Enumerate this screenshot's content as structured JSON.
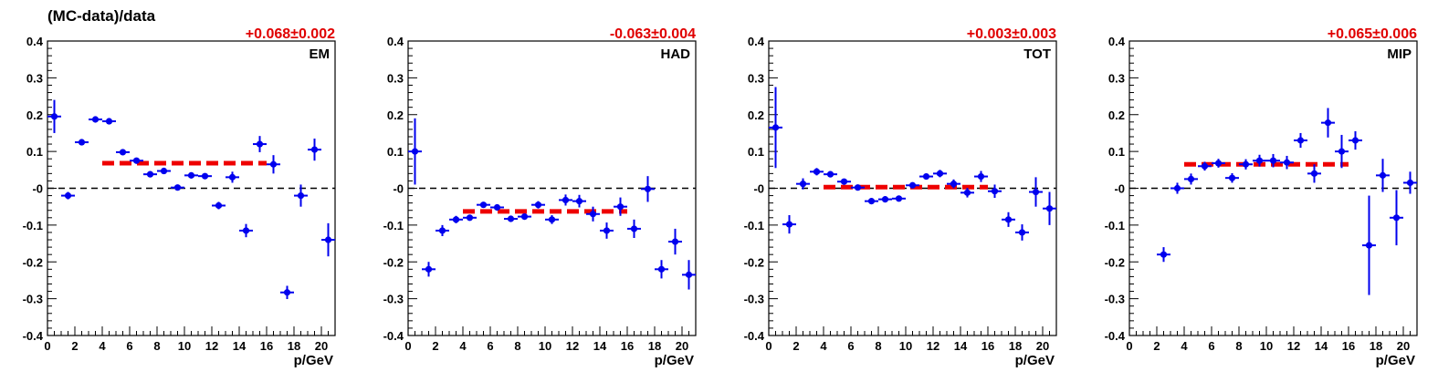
{
  "figure": {
    "ylabel": "(MC-data)/data",
    "colors": {
      "points": "#0000ee",
      "fit": "#ee0000",
      "zero_line": "#000000",
      "axis": "#000000"
    }
  },
  "chart_data": [
    {
      "type": "scatter",
      "panel_label": "EM",
      "fit_label": "+0.068±0.002",
      "xlabel": "p/GeV",
      "xlim": [
        0,
        21
      ],
      "ylim": [
        -0.4,
        0.4
      ],
      "xticks": [
        0,
        2,
        4,
        6,
        8,
        10,
        12,
        14,
        16,
        18,
        20
      ],
      "yticks": [
        -0.4,
        -0.3,
        -0.2,
        -0.1,
        0,
        0.1,
        0.2,
        0.3,
        0.4
      ],
      "ytick_labels": [
        "-0.4",
        "-0.3",
        "-0.2",
        "-0.1",
        "-0",
        "0.1",
        "0.2",
        "0.3",
        "0.4"
      ],
      "fit": {
        "value": 0.068,
        "x_range": [
          4,
          16
        ]
      },
      "points": [
        {
          "x": 0.5,
          "y": 0.195,
          "err": 0.045
        },
        {
          "x": 1.5,
          "y": -0.02,
          "err": 0.01
        },
        {
          "x": 2.5,
          "y": 0.125,
          "err": 0.005
        },
        {
          "x": 3.5,
          "y": 0.187,
          "err": 0.004
        },
        {
          "x": 4.5,
          "y": 0.182,
          "err": 0.004
        },
        {
          "x": 5.5,
          "y": 0.098,
          "err": 0.005
        },
        {
          "x": 6.5,
          "y": 0.075,
          "err": 0.005
        },
        {
          "x": 7.5,
          "y": 0.038,
          "err": 0.005
        },
        {
          "x": 8.5,
          "y": 0.047,
          "err": 0.005
        },
        {
          "x": 9.5,
          "y": 0.002,
          "err": 0.005
        },
        {
          "x": 10.5,
          "y": 0.035,
          "err": 0.006
        },
        {
          "x": 11.5,
          "y": 0.033,
          "err": 0.007
        },
        {
          "x": 12.5,
          "y": -0.047,
          "err": 0.01
        },
        {
          "x": 13.5,
          "y": 0.03,
          "err": 0.015
        },
        {
          "x": 14.5,
          "y": -0.115,
          "err": 0.018
        },
        {
          "x": 15.5,
          "y": 0.12,
          "err": 0.022
        },
        {
          "x": 16.5,
          "y": 0.065,
          "err": 0.025
        },
        {
          "x": 17.5,
          "y": -0.283,
          "err": 0.018
        },
        {
          "x": 18.5,
          "y": -0.02,
          "err": 0.03
        },
        {
          "x": 19.5,
          "y": 0.105,
          "err": 0.03
        },
        {
          "x": 20.5,
          "y": -0.14,
          "err": 0.045
        }
      ]
    },
    {
      "type": "scatter",
      "panel_label": "HAD",
      "fit_label": "-0.063±0.004",
      "xlabel": "p/GeV",
      "xlim": [
        0,
        21
      ],
      "ylim": [
        -0.4,
        0.4
      ],
      "xticks": [
        0,
        2,
        4,
        6,
        8,
        10,
        12,
        14,
        16,
        18,
        20
      ],
      "yticks": [
        -0.4,
        -0.3,
        -0.2,
        -0.1,
        0,
        0.1,
        0.2,
        0.3,
        0.4
      ],
      "ytick_labels": [
        "-0.4",
        "-0.3",
        "-0.2",
        "-0.1",
        "-0",
        "0.1",
        "0.2",
        "0.3",
        "0.4"
      ],
      "fit": {
        "value": -0.063,
        "x_range": [
          4,
          16
        ]
      },
      "points": [
        {
          "x": 0.5,
          "y": 0.1,
          "err": 0.09
        },
        {
          "x": 1.5,
          "y": -0.22,
          "err": 0.02
        },
        {
          "x": 2.5,
          "y": -0.115,
          "err": 0.015
        },
        {
          "x": 3.5,
          "y": -0.085,
          "err": 0.01
        },
        {
          "x": 4.5,
          "y": -0.08,
          "err": 0.008
        },
        {
          "x": 5.5,
          "y": -0.045,
          "err": 0.007
        },
        {
          "x": 6.5,
          "y": -0.052,
          "err": 0.007
        },
        {
          "x": 7.5,
          "y": -0.083,
          "err": 0.007
        },
        {
          "x": 8.5,
          "y": -0.077,
          "err": 0.008
        },
        {
          "x": 9.5,
          "y": -0.045,
          "err": 0.01
        },
        {
          "x": 10.5,
          "y": -0.085,
          "err": 0.012
        },
        {
          "x": 11.5,
          "y": -0.032,
          "err": 0.015
        },
        {
          "x": 12.5,
          "y": -0.035,
          "err": 0.017
        },
        {
          "x": 13.5,
          "y": -0.07,
          "err": 0.02
        },
        {
          "x": 14.5,
          "y": -0.115,
          "err": 0.022
        },
        {
          "x": 15.5,
          "y": -0.05,
          "err": 0.025
        },
        {
          "x": 16.5,
          "y": -0.11,
          "err": 0.025
        },
        {
          "x": 17.5,
          "y": -0.002,
          "err": 0.035
        },
        {
          "x": 18.5,
          "y": -0.22,
          "err": 0.025
        },
        {
          "x": 19.5,
          "y": -0.145,
          "err": 0.035
        },
        {
          "x": 20.5,
          "y": -0.235,
          "err": 0.04
        }
      ]
    },
    {
      "type": "scatter",
      "panel_label": "TOT",
      "fit_label": "+0.003±0.003",
      "xlabel": "p/GeV",
      "xlim": [
        0,
        21
      ],
      "ylim": [
        -0.4,
        0.4
      ],
      "xticks": [
        0,
        2,
        4,
        6,
        8,
        10,
        12,
        14,
        16,
        18,
        20
      ],
      "yticks": [
        -0.4,
        -0.3,
        -0.2,
        -0.1,
        0,
        0.1,
        0.2,
        0.3,
        0.4
      ],
      "ytick_labels": [
        "-0.4",
        "-0.3",
        "-0.2",
        "-0.1",
        "-0",
        "0.1",
        "0.2",
        "0.3",
        "0.4"
      ],
      "fit": {
        "value": 0.003,
        "x_range": [
          4,
          16
        ]
      },
      "points": [
        {
          "x": 0.5,
          "y": 0.165,
          "err": 0.11
        },
        {
          "x": 1.5,
          "y": -0.098,
          "err": 0.025
        },
        {
          "x": 2.5,
          "y": 0.012,
          "err": 0.015
        },
        {
          "x": 3.5,
          "y": 0.045,
          "err": 0.01
        },
        {
          "x": 4.5,
          "y": 0.038,
          "err": 0.008
        },
        {
          "x": 5.5,
          "y": 0.018,
          "err": 0.006
        },
        {
          "x": 6.5,
          "y": 0.002,
          "err": 0.005
        },
        {
          "x": 7.5,
          "y": -0.035,
          "err": 0.005
        },
        {
          "x": 8.5,
          "y": -0.03,
          "err": 0.005
        },
        {
          "x": 9.5,
          "y": -0.028,
          "err": 0.006
        },
        {
          "x": 10.5,
          "y": 0.008,
          "err": 0.007
        },
        {
          "x": 11.5,
          "y": 0.032,
          "err": 0.008
        },
        {
          "x": 12.5,
          "y": 0.04,
          "err": 0.01
        },
        {
          "x": 13.5,
          "y": 0.012,
          "err": 0.012
        },
        {
          "x": 14.5,
          "y": -0.012,
          "err": 0.013
        },
        {
          "x": 15.5,
          "y": 0.032,
          "err": 0.015
        },
        {
          "x": 16.5,
          "y": -0.008,
          "err": 0.018
        },
        {
          "x": 17.5,
          "y": -0.085,
          "err": 0.02
        },
        {
          "x": 18.5,
          "y": -0.12,
          "err": 0.022
        },
        {
          "x": 19.5,
          "y": -0.01,
          "err": 0.04
        },
        {
          "x": 20.5,
          "y": -0.055,
          "err": 0.045
        }
      ]
    },
    {
      "type": "scatter",
      "panel_label": "MIP",
      "fit_label": "+0.065±0.006",
      "xlabel": "p/GeV",
      "xlim": [
        0,
        21
      ],
      "ylim": [
        -0.4,
        0.4
      ],
      "xticks": [
        0,
        2,
        4,
        6,
        8,
        10,
        12,
        14,
        16,
        18,
        20
      ],
      "yticks": [
        -0.4,
        -0.3,
        -0.2,
        -0.1,
        0,
        0.1,
        0.2,
        0.3,
        0.4
      ],
      "ytick_labels": [
        "-0.4",
        "-0.3",
        "-0.2",
        "-0.1",
        "-0",
        "0.1",
        "0.2",
        "0.3",
        "0.4"
      ],
      "fit": {
        "value": 0.065,
        "x_range": [
          4,
          16
        ]
      },
      "points": [
        {
          "x": 2.5,
          "y": -0.18,
          "err": 0.02
        },
        {
          "x": 3.5,
          "y": 0.0,
          "err": 0.015
        },
        {
          "x": 4.5,
          "y": 0.025,
          "err": 0.015
        },
        {
          "x": 5.5,
          "y": 0.06,
          "err": 0.012
        },
        {
          "x": 6.5,
          "y": 0.068,
          "err": 0.012
        },
        {
          "x": 7.5,
          "y": 0.028,
          "err": 0.013
        },
        {
          "x": 8.5,
          "y": 0.065,
          "err": 0.014
        },
        {
          "x": 9.5,
          "y": 0.075,
          "err": 0.016
        },
        {
          "x": 10.5,
          "y": 0.075,
          "err": 0.018
        },
        {
          "x": 11.5,
          "y": 0.07,
          "err": 0.018
        },
        {
          "x": 12.5,
          "y": 0.13,
          "err": 0.02
        },
        {
          "x": 13.5,
          "y": 0.04,
          "err": 0.025
        },
        {
          "x": 14.5,
          "y": 0.178,
          "err": 0.04
        },
        {
          "x": 15.5,
          "y": 0.1,
          "err": 0.045
        },
        {
          "x": 16.5,
          "y": 0.13,
          "err": 0.025
        },
        {
          "x": 17.5,
          "y": -0.155,
          "err": 0.135
        },
        {
          "x": 18.5,
          "y": 0.035,
          "err": 0.045
        },
        {
          "x": 19.5,
          "y": -0.08,
          "err": 0.075
        },
        {
          "x": 20.5,
          "y": 0.015,
          "err": 0.03
        }
      ]
    }
  ]
}
